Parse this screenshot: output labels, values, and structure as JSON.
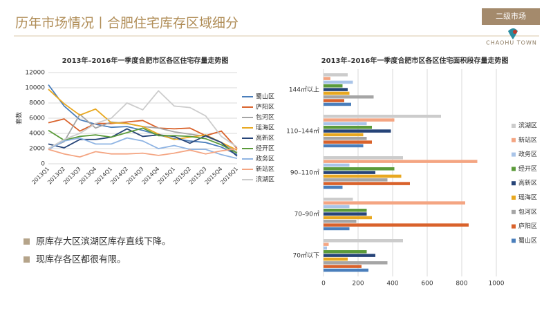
{
  "header": {
    "title": "历年市场情况丨合肥住宅库存区域细分",
    "badge": "二级市场",
    "logo": "CHAOHU TOWN"
  },
  "bullets": [
    "原库存大区滨湖区库存直线下降。",
    "现库存各区都很有限。"
  ],
  "chart_data": [
    {
      "type": "line",
      "title": "2013年–2016年一季度合肥市区各区住宅存量走势图",
      "y_label": "套数",
      "categories": [
        "2013Q1",
        "2013Q2",
        "2013Q3",
        "2013Q4",
        "2014Q1",
        "2014Q2",
        "2014Q3",
        "2014Q4",
        "2015Q1",
        "2015Q2",
        "2015Q3",
        "2015Q4",
        "2016Q1"
      ],
      "ylim": [
        0,
        12000
      ],
      "yticks": [
        0,
        2000,
        4000,
        6000,
        8000,
        10000,
        12000
      ],
      "grid": true,
      "legend": "right",
      "series": [
        {
          "name": "蜀山区",
          "color": "#4a7ebb",
          "values": [
            10400,
            7600,
            5800,
            5200,
            4800,
            4900,
            4400,
            3800,
            3300,
            3000,
            2800,
            2200,
            1200
          ]
        },
        {
          "name": "庐阳区",
          "color": "#d9622b",
          "values": [
            5400,
            5900,
            4300,
            5300,
            5300,
            5500,
            5700,
            4700,
            4600,
            4700,
            3700,
            4300,
            2000
          ]
        },
        {
          "name": "包河区",
          "color": "#a5a5a5",
          "values": [
            2000,
            2900,
            6500,
            4700,
            5500,
            5300,
            4900,
            4700,
            4200,
            3900,
            3600,
            2800,
            1500
          ]
        },
        {
          "name": "瑶海区",
          "color": "#e8a820",
          "values": [
            9800,
            7900,
            6400,
            7200,
            5400,
            5300,
            4900,
            3900,
            3200,
            3500,
            3800,
            2800,
            1800
          ]
        },
        {
          "name": "高新区",
          "color": "#264478",
          "values": [
            2600,
            2100,
            3200,
            3200,
            3500,
            4600,
            3600,
            3800,
            3600,
            2700,
            3700,
            2800,
            1000
          ]
        },
        {
          "name": "经开区",
          "color": "#5b9b3a",
          "values": [
            4400,
            3100,
            3600,
            3800,
            3500,
            4100,
            4700,
            3700,
            3700,
            3600,
            3300,
            2500,
            1400
          ]
        },
        {
          "name": "政务区",
          "color": "#8fb4e3",
          "values": [
            1900,
            3000,
            3400,
            2600,
            2600,
            3400,
            3000,
            2000,
            2400,
            1900,
            1900,
            1200,
            700
          ]
        },
        {
          "name": "新站区",
          "color": "#f4a582",
          "values": [
            1900,
            1300,
            900,
            1600,
            1300,
            1300,
            1400,
            1100,
            1400,
            1800,
            1300,
            1700,
            2000
          ]
        },
        {
          "name": "滨湖区",
          "color": "#cccccc",
          "values": [
            2000,
            3200,
            4000,
            5300,
            6000,
            8000,
            7100,
            9600,
            7600,
            7400,
            6300,
            3600,
            2200
          ]
        }
      ]
    },
    {
      "type": "hbar",
      "title": "2013年–2016年一季度合肥市区各区住宅面积段存量走势图",
      "categories": [
        "70㎡以下",
        "70–90㎡",
        "90–110㎡",
        "110–144㎡",
        "144㎡以上"
      ],
      "xlim": [
        0,
        1000
      ],
      "xticks": [
        0,
        200,
        400,
        600,
        800,
        1000
      ],
      "grid": true,
      "legend": "right",
      "series": [
        {
          "name": "滨湖区",
          "color": "#cccccc",
          "values": [
            460,
            170,
            460,
            680,
            140
          ]
        },
        {
          "name": "新站区",
          "color": "#f4a582",
          "values": [
            30,
            820,
            890,
            410,
            40
          ]
        },
        {
          "name": "政务区",
          "color": "#a9c4e8",
          "values": [
            20,
            150,
            150,
            250,
            170
          ]
        },
        {
          "name": "经开区",
          "color": "#5b9b3a",
          "values": [
            250,
            250,
            410,
            280,
            110
          ]
        },
        {
          "name": "高新区",
          "color": "#264478",
          "values": [
            300,
            250,
            300,
            390,
            140
          ]
        },
        {
          "name": "瑶海区",
          "color": "#e8a820",
          "values": [
            140,
            280,
            450,
            230,
            150
          ]
        },
        {
          "name": "包河区",
          "color": "#a5a5a5",
          "values": [
            370,
            190,
            370,
            250,
            290
          ]
        },
        {
          "name": "庐阳区",
          "color": "#d9622b",
          "values": [
            220,
            840,
            500,
            280,
            120
          ]
        },
        {
          "name": "蜀山区",
          "color": "#4a7ebb",
          "values": [
            260,
            150,
            110,
            230,
            160
          ]
        }
      ]
    }
  ]
}
